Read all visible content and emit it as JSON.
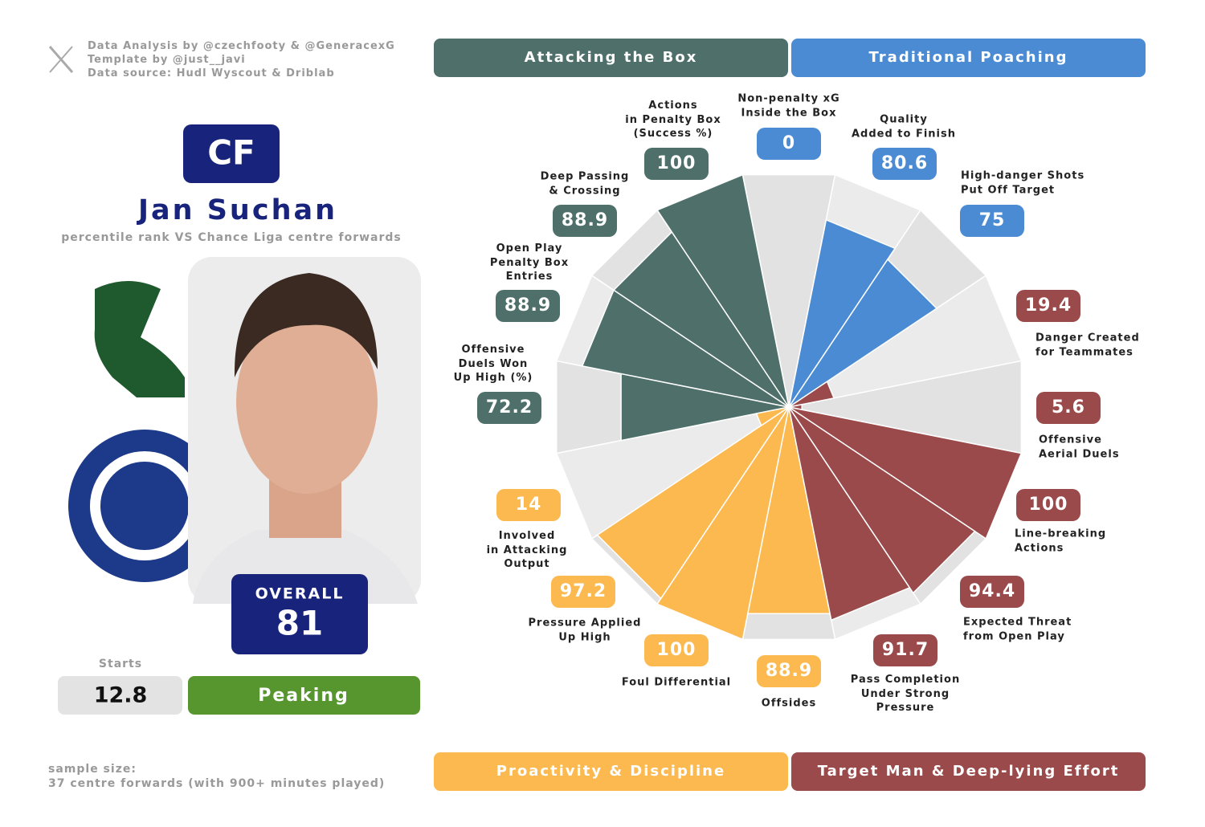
{
  "header": {
    "credits": [
      "Data Analysis by @czechfooty & @GeneracexG",
      "Template by @just__javi",
      "Data source: Hudl Wyscout & Driblab"
    ]
  },
  "player": {
    "position": "CF",
    "name": "Jan Suchan",
    "subtitle": "percentile rank VS Chance Liga centre forwards",
    "overall_label": "OVERALL",
    "overall": 81,
    "starts_label": "Starts",
    "starts": 12.8,
    "status": "Peaking"
  },
  "footer": {
    "sample_label": "sample size:",
    "sample_text": "37 centre forwards (with 900+ minutes played)"
  },
  "chart_data": {
    "type": "polar_bar",
    "categories": [
      "Non-penalty xG\nInside the Box",
      "Quality\nAdded to Finish",
      "High-danger Shots\nPut Off Target",
      "Danger Created\nfor Teammates",
      "Offensive\nAerial Duels",
      "Line-breaking\nActions",
      "Expected Threat\nfrom Open Play",
      "Pass Completion\nUnder Strong\nPressure",
      "Offsides",
      "Foul Differential",
      "Pressure Applied\nUp High",
      "Involved\nin Attacking\nOutput",
      "Offensive\nDuels Won\nUp High (%)",
      "Open Play\nPenalty Box\nEntries",
      "Deep Passing\n& Crossing",
      "Actions\nin Penalty Box\n(Success %)"
    ],
    "ylim": [
      0,
      100
    ],
    "series": [
      {
        "name": "Attacking the Box",
        "color": "#4f706a",
        "values": [
          null,
          null,
          null,
          null,
          null,
          null,
          null,
          null,
          null,
          null,
          null,
          null,
          72.2,
          88.9,
          88.9,
          100
        ]
      },
      {
        "name": "Traditional Poaching",
        "color": "#4a8bd4",
        "values": [
          0,
          80.6,
          75,
          null,
          null,
          null,
          null,
          null,
          null,
          null,
          null,
          null,
          null,
          null,
          null,
          null
        ]
      },
      {
        "name": "Proactivity & Discipline",
        "color": "#fbb94f",
        "values": [
          null,
          null,
          null,
          null,
          null,
          null,
          null,
          null,
          88.9,
          100,
          97.2,
          14,
          null,
          null,
          null,
          null
        ]
      },
      {
        "name": "Target Man & Deep-lying Effort",
        "color": "#9a4a4a",
        "values": [
          null,
          null,
          null,
          19.4,
          5.6,
          100,
          94.4,
          91.7,
          null,
          null,
          null,
          null,
          null,
          null,
          null,
          null
        ]
      }
    ]
  }
}
